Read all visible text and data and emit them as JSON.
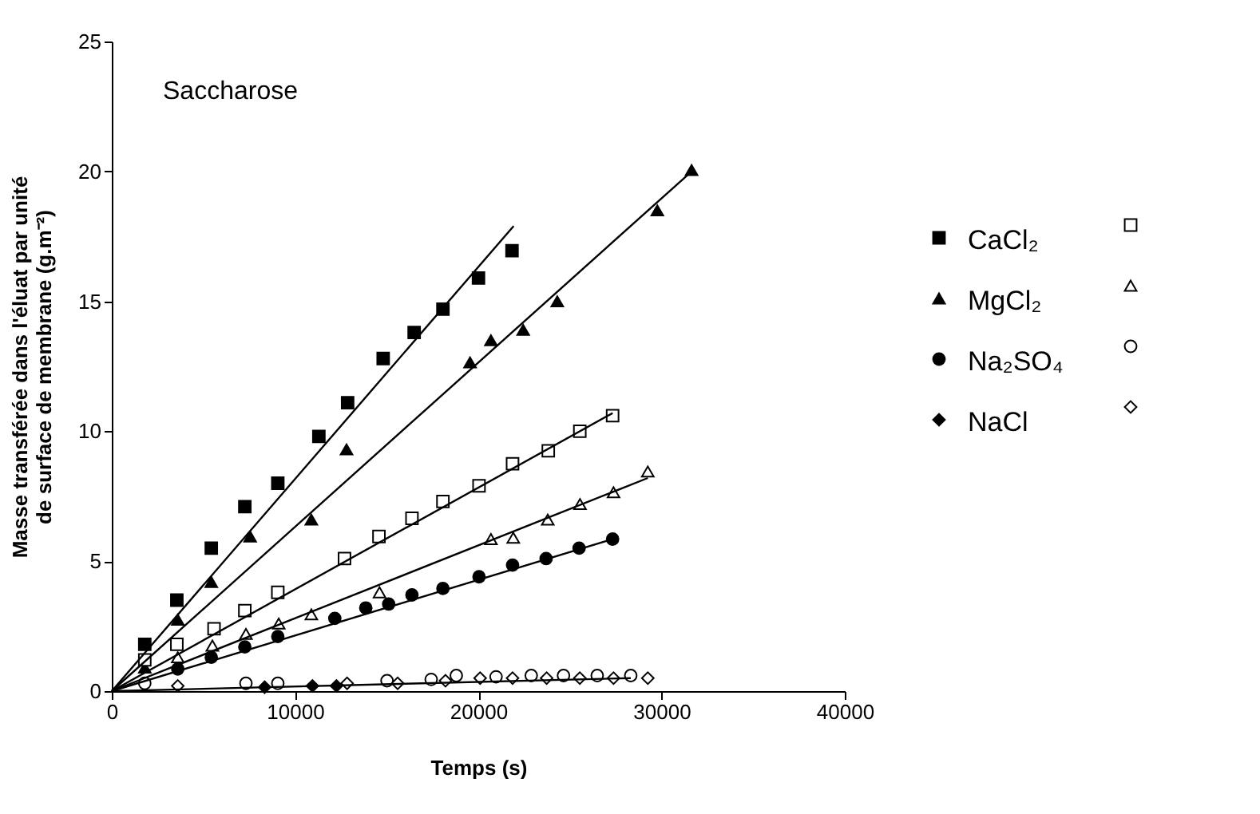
{
  "chart_data": {
    "type": "scatter",
    "xlabel": "Temps (s)",
    "ylabel": "Masse transférée dans l'éluat par unité\nde surface de membrane (g.m⁻²)",
    "annotations": [
      "Saccharose"
    ],
    "xlim": [
      0,
      40000
    ],
    "xticks": [
      0,
      10000,
      20000,
      30000,
      40000
    ],
    "ylim": [
      0,
      25
    ],
    "yticks": [
      0,
      5,
      10,
      15,
      20,
      25
    ],
    "legend": "right",
    "series": [
      {
        "name": "CaCl₂",
        "color": "#000000",
        "marker": "square",
        "x": [
          1800,
          3550,
          5430,
          7260,
          9060,
          11300,
          12870,
          14810,
          16500,
          18070,
          20010,
          21840
        ],
        "values": [
          1.8,
          3.5,
          5.5,
          7.1,
          8.0,
          9.8,
          11.1,
          12.8,
          13.8,
          14.7,
          15.9,
          16.95
        ]
      },
      {
        "name": "MgCl₂",
        "color": "#000000",
        "marker": "triangle",
        "x": [
          1800,
          3600,
          5430,
          7550,
          10890,
          12810,
          19550,
          20690,
          22450,
          24310,
          29770,
          31640
        ],
        "values": [
          0.9,
          2.75,
          4.2,
          5.95,
          6.6,
          9.3,
          12.65,
          13.5,
          13.9,
          15.0,
          18.5,
          20.05
        ]
      },
      {
        "name": "Na₂SO₄",
        "color": "#000000",
        "marker": "circle",
        "x": [
          3600,
          5430,
          7260,
          9060,
          12170,
          13860,
          15110,
          16380,
          18070,
          20040,
          21870,
          23700,
          25500,
          27330
        ],
        "values": [
          0.85,
          1.3,
          1.7,
          2.1,
          2.8,
          3.2,
          3.35,
          3.7,
          3.95,
          4.4,
          4.85,
          5.1,
          5.5,
          5.85
        ]
      },
      {
        "name": "NaCl",
        "color": "#000000",
        "marker": "diamond",
        "x": [
          8340,
          10950,
          12260
        ],
        "values": [
          0.15,
          0.2,
          0.2
        ]
      },
      {
        "color": "#000000",
        "marker": "square",
        "x": [
          1800,
          3550,
          5580,
          7260,
          9060,
          12700,
          14580,
          16380,
          18070,
          20040,
          21870,
          23820,
          25540,
          27330
        ],
        "values": [
          1.2,
          1.8,
          2.4,
          3.1,
          3.8,
          5.1,
          5.95,
          6.65,
          7.3,
          7.9,
          8.75,
          9.25,
          10.0,
          10.6
        ]
      },
      {
        "color": "#000000",
        "marker": "triangle",
        "x": [
          3600,
          5490,
          7320,
          9110,
          10890,
          14610,
          20690,
          21910,
          23790,
          25550,
          27380,
          29250
        ],
        "values": [
          1.3,
          1.75,
          2.2,
          2.6,
          2.95,
          3.8,
          5.85,
          5.9,
          6.6,
          7.2,
          7.65,
          8.45
        ]
      },
      {
        "color": "#000000",
        "marker": "circle",
        "x": [
          1800,
          7320,
          9060,
          15020,
          17430,
          18800,
          20970,
          22890,
          24650,
          26490,
          28320
        ],
        "values": [
          0.3,
          0.3,
          0.3,
          0.4,
          0.45,
          0.6,
          0.55,
          0.6,
          0.6,
          0.6,
          0.6
        ]
      },
      {
        "color": "#000000",
        "marker": "diamond",
        "x": [
          3600,
          12840,
          15600,
          18210,
          20100,
          21870,
          23730,
          25540,
          27380,
          29250
        ],
        "values": [
          0.2,
          0.3,
          0.3,
          0.4,
          0.5,
          0.5,
          0.5,
          0.5,
          0.5,
          0.5
        ]
      },
      {
        "type": "line",
        "color": "#000000",
        "marker": "none",
        "x": [
          0,
          21930
        ],
        "values": [
          0,
          17.9
        ]
      },
      {
        "type": "line",
        "color": "#000000",
        "marker": "none",
        "x": [
          0,
          31640
        ],
        "values": [
          0,
          20.0
        ]
      },
      {
        "type": "line",
        "color": "#000000",
        "marker": "none",
        "x": [
          0,
          27330
        ],
        "values": [
          0,
          10.7
        ]
      },
      {
        "type": "line",
        "color": "#000000",
        "marker": "none",
        "x": [
          0,
          29250
        ],
        "values": [
          0,
          8.2
        ]
      },
      {
        "type": "line",
        "color": "#000000",
        "marker": "none",
        "x": [
          0,
          27330
        ],
        "values": [
          0,
          5.85
        ]
      },
      {
        "type": "line",
        "color": "#000000",
        "marker": "none",
        "x": [
          0,
          28320
        ],
        "values": [
          0,
          0.5
        ]
      }
    ]
  }
}
